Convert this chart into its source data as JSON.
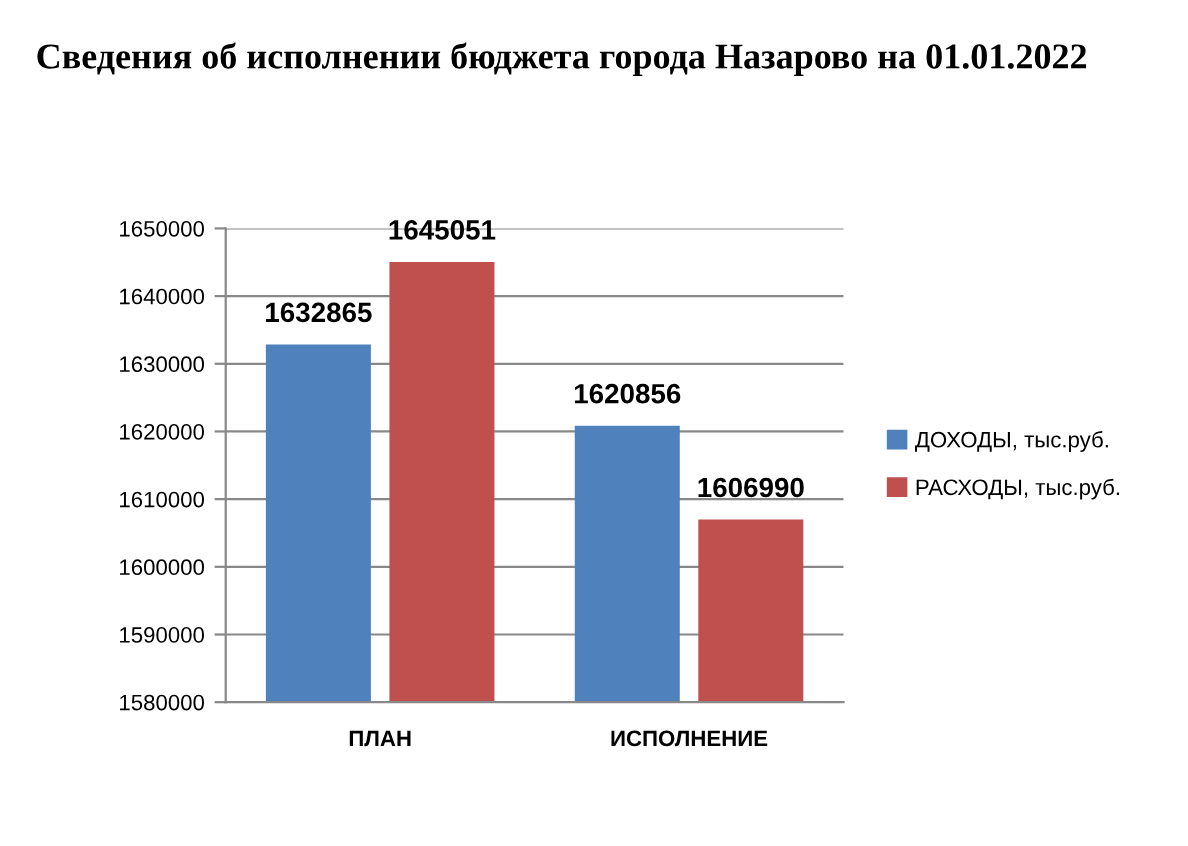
{
  "chart_data": {
    "type": "bar",
    "title": "Сведения об исполнении бюджета города Назарово на 01.01.2022",
    "categories": [
      "ПЛАН",
      "ИСПОЛНЕНИЕ"
    ],
    "series": [
      {
        "name": "ДОХОДЫ, тыс.руб.",
        "color": "#4f81bd",
        "values": [
          1632865,
          1620856
        ]
      },
      {
        "name": "РАСХОДЫ, тыс.руб.",
        "color": "#c0504d",
        "values": [
          1645051,
          1606990
        ]
      }
    ],
    "ylim": [
      1580000,
      1650000
    ],
    "yticks": [
      1580000,
      1590000,
      1600000,
      1610000,
      1620000,
      1630000,
      1640000,
      1650000
    ],
    "grid": "y",
    "legend": "right",
    "data_labels": true
  }
}
